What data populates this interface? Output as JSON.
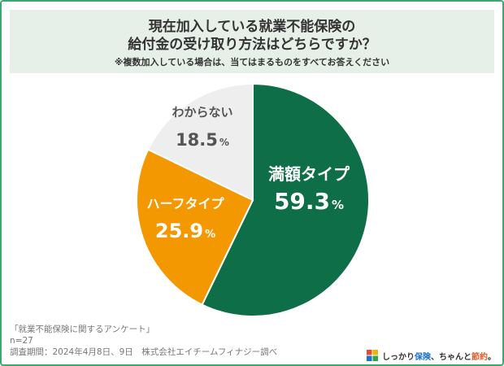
{
  "title": {
    "line1": "現在加入している就業不能保険の",
    "line2": "給付金の受け取り方法はどちらですか？",
    "note": "※複数加入している場合は、当てはまるものをすべてお答えください"
  },
  "chart_data": {
    "type": "pie",
    "title": "現在加入している就業不能保険の給付金の受け取り方法はどちらですか？",
    "slices": [
      {
        "label": "満額タイプ",
        "value": 59.3,
        "display": "59.3",
        "color": "#0e6e47",
        "text_color": "#ffffff"
      },
      {
        "label": "ハーフタイプ",
        "value": 25.9,
        "display": "25.9",
        "color": "#f39800",
        "text_color": "#ffffff"
      },
      {
        "label": "わからない",
        "value": 18.5,
        "display": "18.5",
        "color": "#eeeeee",
        "text_color": "#555555"
      }
    ],
    "unit": "%",
    "start_angle_deg": 0,
    "direction": "clockwise"
  },
  "footer": {
    "survey": "「就業不能保険に関するアンケート」",
    "n": "n=27",
    "period": "調査期間：2024年4月8日、9日　株式会社エイチームフィナジー調べ"
  },
  "logo": {
    "part1": "しっかり",
    "part2": "保険",
    "part3": "、ちゃんと",
    "part4": "節約",
    "part5": "。"
  }
}
